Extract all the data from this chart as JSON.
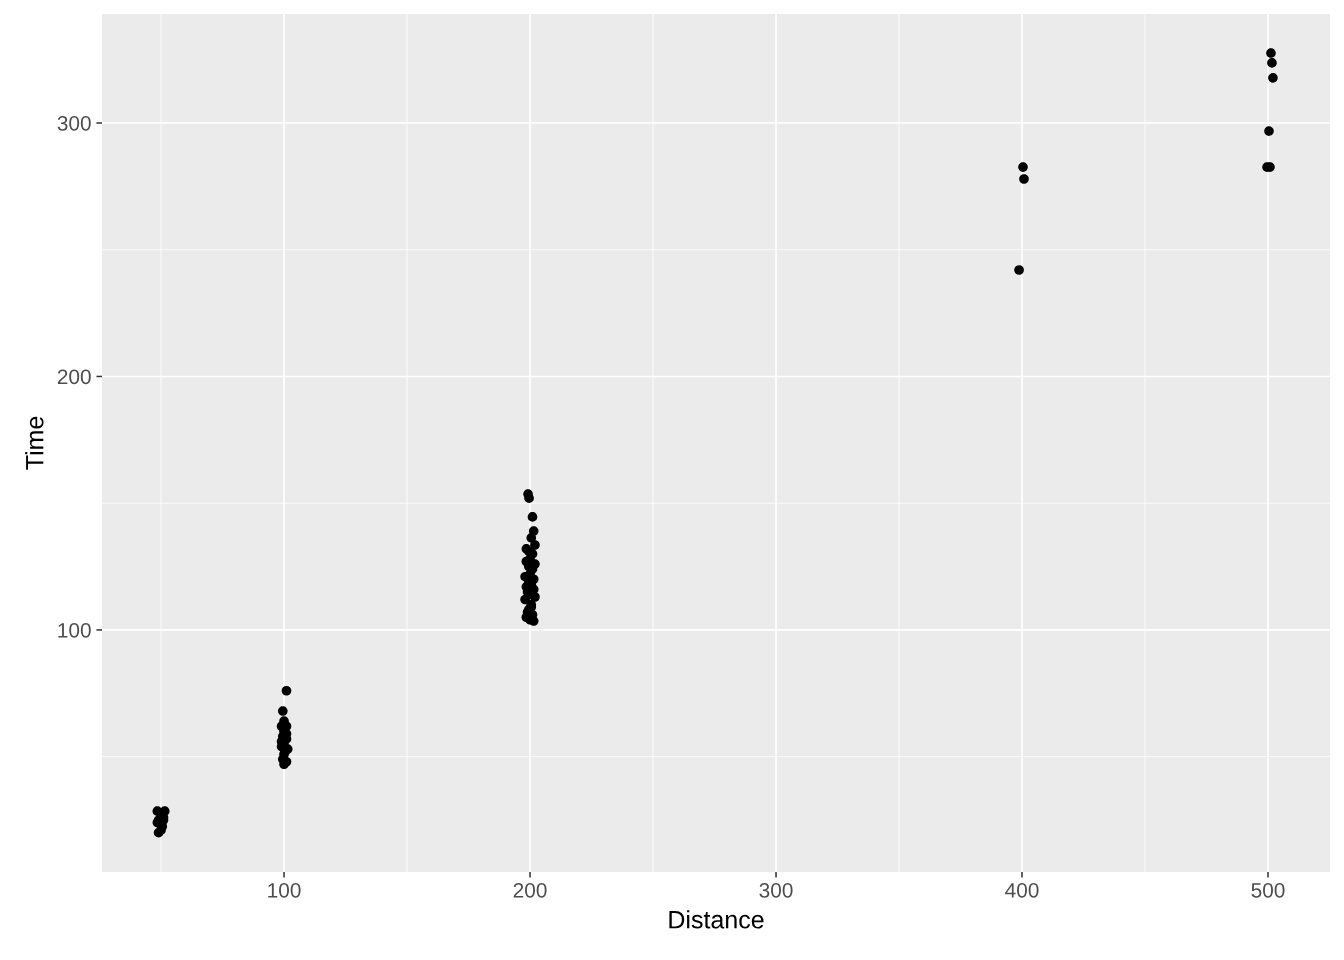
{
  "chart_data": {
    "type": "scatter",
    "xlabel": "Distance",
    "ylabel": "Time",
    "x": [
      48.5,
      51.5,
      49,
      51,
      50,
      49,
      50.5,
      48.5,
      51,
      101,
      99.5,
      100,
      99,
      101,
      100,
      99.5,
      101,
      100,
      99,
      101.5,
      100,
      99.5,
      101,
      100,
      100.5,
      99,
      101,
      199.2,
      199.6,
      201,
      201.5,
      200.5,
      202,
      198.5,
      199.5,
      201,
      200,
      198.5,
      202,
      199.5,
      201,
      200,
      198,
      201.5,
      199.5,
      200.5,
      198.5,
      201.5,
      199,
      200,
      202,
      198,
      200.5,
      199.5,
      201,
      198.5,
      200,
      201.5,
      199,
      200.5,
      398.8,
      400.4,
      400.8,
      501.2,
      501.6,
      502,
      500.4,
      499.6,
      500.8
    ],
    "values": [
      28.5,
      28.5,
      25,
      25,
      21,
      20,
      22.5,
      24,
      26,
      76,
      68,
      64,
      62,
      62,
      60,
      58,
      57,
      55,
      54,
      53,
      51,
      49,
      48,
      47,
      52,
      56,
      59,
      153.6,
      152,
      144.6,
      139,
      136.3,
      133.5,
      132,
      131,
      130,
      128,
      127,
      126,
      125,
      124,
      122,
      121,
      120,
      119,
      118,
      117,
      116,
      115,
      114,
      113,
      112,
      110,
      108,
      106,
      105,
      104,
      103.5,
      107,
      109,
      242,
      282.6,
      277.9,
      327.6,
      323.7,
      317.8,
      296.8,
      282.6,
      282.6
    ],
    "color": "#000000",
    "marker": "circle",
    "xlim": [
      26,
      525.2
    ],
    "xticks": [
      100,
      200,
      300,
      400,
      500
    ],
    "ylim": [
      4.5,
      343
    ],
    "yticks": [
      100,
      200,
      300
    ],
    "grid": true
  }
}
